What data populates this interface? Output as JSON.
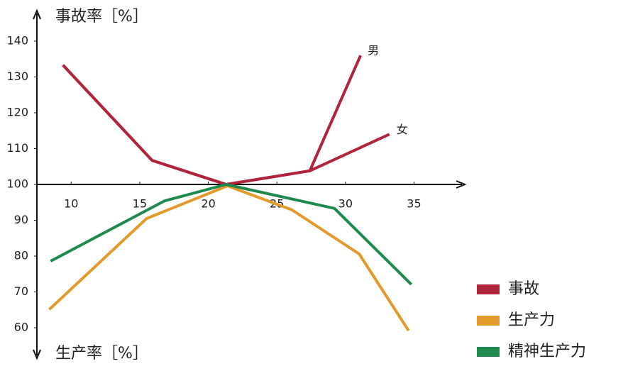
{
  "chart_data": {
    "type": "line",
    "y_label_top": "事故率［%］",
    "y_label_bottom": "生产率［%］",
    "xlim": [
      7.5,
      38.7
    ],
    "ylim": [
      51.5,
      148.5
    ],
    "xticks": [
      10,
      15,
      20,
      25,
      30,
      35
    ],
    "yticks": [
      60,
      70,
      80,
      90,
      100,
      110,
      120,
      130,
      140
    ],
    "series": [
      {
        "name": "事故",
        "color": "#b0243c",
        "lines": [
          {
            "label": "男",
            "x": [
              9.4,
              15.9,
              21.3,
              27.4,
              31.1
            ],
            "values": [
              133.3,
              106.7,
              100,
              103.8,
              136
            ]
          },
          {
            "label": "女",
            "x": [
              9.4,
              15.9,
              21.3,
              27.4,
              33.2
            ],
            "values": [
              133.3,
              106.7,
              100,
              103.8,
              114
            ]
          }
        ]
      },
      {
        "name": "生产力",
        "color": "#e39a2b",
        "lines": [
          {
            "x": [
              8.4,
              15.5,
              21.4,
              26.1,
              31.0,
              34.6
            ],
            "values": [
              65.1,
              90.5,
              99.6,
              92.9,
              80.6,
              59.2
            ]
          }
        ]
      },
      {
        "name": "精神生产力",
        "color": "#1e8a4e",
        "lines": [
          {
            "x": [
              8.5,
              16.8,
              21.3,
              29.2,
              34.8
            ],
            "values": [
              78.6,
              95.4,
              100,
              93.3,
              72.1
            ]
          }
        ]
      }
    ]
  }
}
